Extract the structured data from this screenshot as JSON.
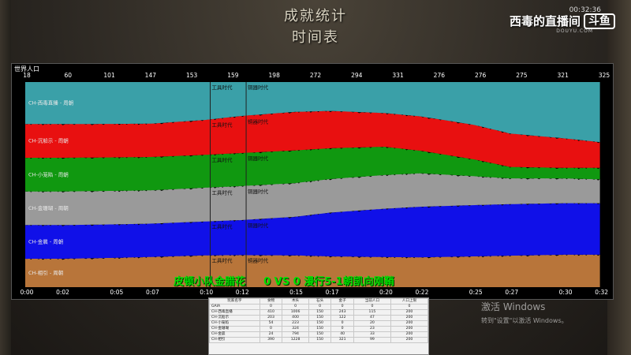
{
  "header": {
    "title_line1": "成就统计",
    "title_line2": "时间表",
    "timer": "00:32:36",
    "brand_text": "西毒的直播间",
    "brand_logo": "斗鱼",
    "brand_sub": "DOUYU.COM"
  },
  "chart_data": {
    "type": "area",
    "title": "世界人口",
    "top_tick_labels": [
      "18",
      "60",
      "101",
      "147",
      "153",
      "159",
      "198",
      "272",
      "294",
      "331",
      "276",
      "276",
      "275",
      "321",
      "325"
    ],
    "bottom_tick_labels": [
      "0:00",
      "0:02",
      "0:05",
      "0:07",
      "0:10",
      "0:12",
      "0:15",
      "0:17",
      "0:20",
      "0:22",
      "0:25",
      "0:27",
      "0:30",
      "0:32"
    ],
    "series": [
      {
        "name": "CH-相引 - 周朝",
        "color": "#b8753a"
      },
      {
        "name": "CH-金晨 - 周朝",
        "color": "#1010e8"
      },
      {
        "name": "CH-金珊瑚 - 周朝",
        "color": "#9a9a9a"
      },
      {
        "name": "CH-小笼陷 - 周朝",
        "color": "#109810"
      },
      {
        "name": "CH-沉船示 - 周朝",
        "color": "#e81010"
      },
      {
        "name": "CH-西毒直播 - 周朝",
        "color": "#3aa0a8"
      }
    ],
    "age_markers": [
      {
        "minute": 10,
        "label": "工具时代"
      },
      {
        "minute": 12,
        "label": "铜器时代"
      }
    ],
    "stack_values": {
      "x_minutes": [
        0,
        2,
        5,
        7,
        10,
        12,
        15,
        17,
        20,
        22,
        25,
        27,
        30,
        32
      ],
      "CH-相引 - 周朝": [
        27,
        27,
        28,
        29,
        31,
        32,
        33,
        33,
        33,
        33,
        33,
        33,
        34,
        34
      ],
      "CH-金晨 - 周朝": [
        32,
        32,
        32,
        32,
        33,
        35,
        40,
        47,
        53,
        56,
        55,
        54,
        54,
        54
      ],
      "CH-金珊瑚 - 周朝": [
        32,
        32,
        32,
        32,
        33,
        34,
        35,
        36,
        37,
        37,
        31,
        27,
        26,
        25
      ],
      "CH-小笼陷 - 周朝": [
        32,
        32,
        32,
        32,
        32,
        33,
        34,
        33,
        31,
        25,
        18,
        12,
        11,
        12
      ],
      "CH-沉船示 - 周朝": [
        32,
        32,
        32,
        32,
        34,
        37,
        40,
        40,
        37,
        38,
        37,
        35,
        31,
        27
      ],
      "CH-西毒直播 - 周朝": [
        40,
        40,
        40,
        40,
        37,
        34,
        31,
        31,
        34,
        38,
        46,
        54,
        59,
        63
      ]
    }
  },
  "overlay": {
    "vs_left": "皮顿小队金腊花",
    "vs_mid_left": "0",
    "vs_word": "VS",
    "vs_mid_right": "0",
    "vs_right": "漫行5-1朝凯向刚鞘"
  },
  "stats_table": {
    "headers": [
      "玩家名字",
      "食物",
      "木头",
      "石头",
      "金子",
      "当前人口",
      "人口上限"
    ],
    "rows": [
      [
        "GAIA",
        "0",
        "0",
        "0",
        "0",
        "0",
        "0"
      ],
      [
        "CH-西毒直播",
        "410",
        "1006",
        "150",
        "243",
        "115",
        "200"
      ],
      [
        "CH-沉船示",
        "203",
        "400",
        "150",
        "122",
        "47",
        "200"
      ],
      [
        "CH-小笼陷",
        "54",
        "223",
        "150",
        "0",
        "20",
        "200"
      ],
      [
        "CH-金珊瑚",
        "0",
        "324",
        "150",
        "0",
        "23",
        "200"
      ],
      [
        "CH-金晨",
        "24",
        "794",
        "150",
        "40",
        "33",
        "200"
      ],
      [
        "CH-相引",
        "390",
        "1228",
        "150",
        "321",
        "99",
        "200"
      ]
    ]
  },
  "watermark": {
    "line1": "激活 Windows",
    "line2": "转到\"设置\"以激活 Windows。"
  }
}
